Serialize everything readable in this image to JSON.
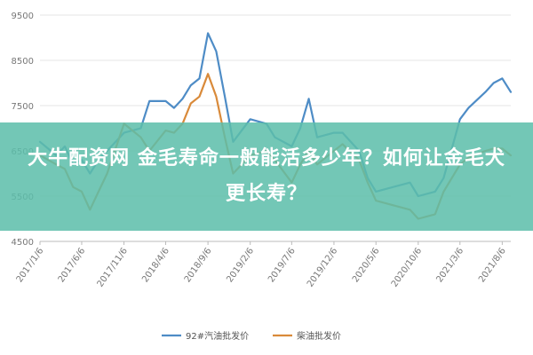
{
  "overlay_text": "大牛配资网 金毛寿命一般能活多少年？如何让金毛犬更长寿？",
  "colors": {
    "series_a": "#4e8cc6",
    "series_b": "#d98a3a",
    "grid": "#e6e6e6"
  },
  "chart_data": {
    "type": "line",
    "title": "",
    "xlabel": "",
    "ylabel": "",
    "ylim": [
      4500,
      9500
    ],
    "yticks": [
      4500,
      5500,
      6500,
      7500,
      8500,
      9500
    ],
    "x_ticks": [
      "2017/1/6",
      "2017/6/6",
      "2017/11/6",
      "2018/4/6",
      "2018/9/6",
      "2019/2/6",
      "2019/7/6",
      "2019/12/6",
      "2020/5/6",
      "2020/10/6",
      "2021/3/6",
      "2021/8/6"
    ],
    "x": [
      "2017/1/6",
      "2017/3/6",
      "2017/4/6",
      "2017/5/6",
      "2017/6/6",
      "2017/7/6",
      "2017/8/6",
      "2017/9/6",
      "2017/11/6",
      "2018/1/6",
      "2018/2/6",
      "2018/4/6",
      "2018/5/6",
      "2018/6/6",
      "2018/7/6",
      "2018/8/6",
      "2018/9/6",
      "2018/10/6",
      "2018/11/6",
      "2018/12/6",
      "2019/2/6",
      "2019/4/6",
      "2019/5/6",
      "2019/7/6",
      "2019/8/6",
      "2019/9/6",
      "2019/10/6",
      "2019/12/6",
      "2020/1/6",
      "2020/3/6",
      "2020/4/6",
      "2020/5/6",
      "2020/7/6",
      "2020/9/6",
      "2020/10/6",
      "2020/12/6",
      "2021/1/6",
      "2021/3/6",
      "2021/4/6",
      "2021/6/6",
      "2021/7/6",
      "2021/8/6",
      "2021/9/6"
    ],
    "series": [
      {
        "name": "92#汽油批发价",
        "color": "#4e8cc6",
        "values": [
          6700,
          6400,
          6600,
          6200,
          6300,
          6000,
          6300,
          6500,
          6900,
          7000,
          7600,
          7600,
          7450,
          7650,
          7950,
          8100,
          9100,
          8700,
          7700,
          6700,
          7200,
          7100,
          6800,
          6600,
          7000,
          7650,
          6800,
          6900,
          6900,
          6500,
          5900,
          5600,
          5700,
          5800,
          5500,
          5600,
          5900,
          7200,
          7450,
          7800,
          8000,
          8100,
          7800
        ]
      },
      {
        "name": "柴油批发价",
        "color": "#d98a3a",
        "values": [
          6400,
          6200,
          6100,
          5700,
          5600,
          5200,
          5600,
          6000,
          7100,
          6800,
          6500,
          6950,
          6900,
          7100,
          7550,
          7700,
          8200,
          7700,
          6800,
          6000,
          6400,
          6500,
          6300,
          5800,
          6200,
          6500,
          6200,
          6500,
          6650,
          6300,
          5800,
          5400,
          5300,
          5200,
          5000,
          5100,
          5600,
          6200,
          6350,
          6500,
          6550,
          6550,
          6400
        ]
      }
    ],
    "grid": true,
    "legend": "bottom-center"
  }
}
